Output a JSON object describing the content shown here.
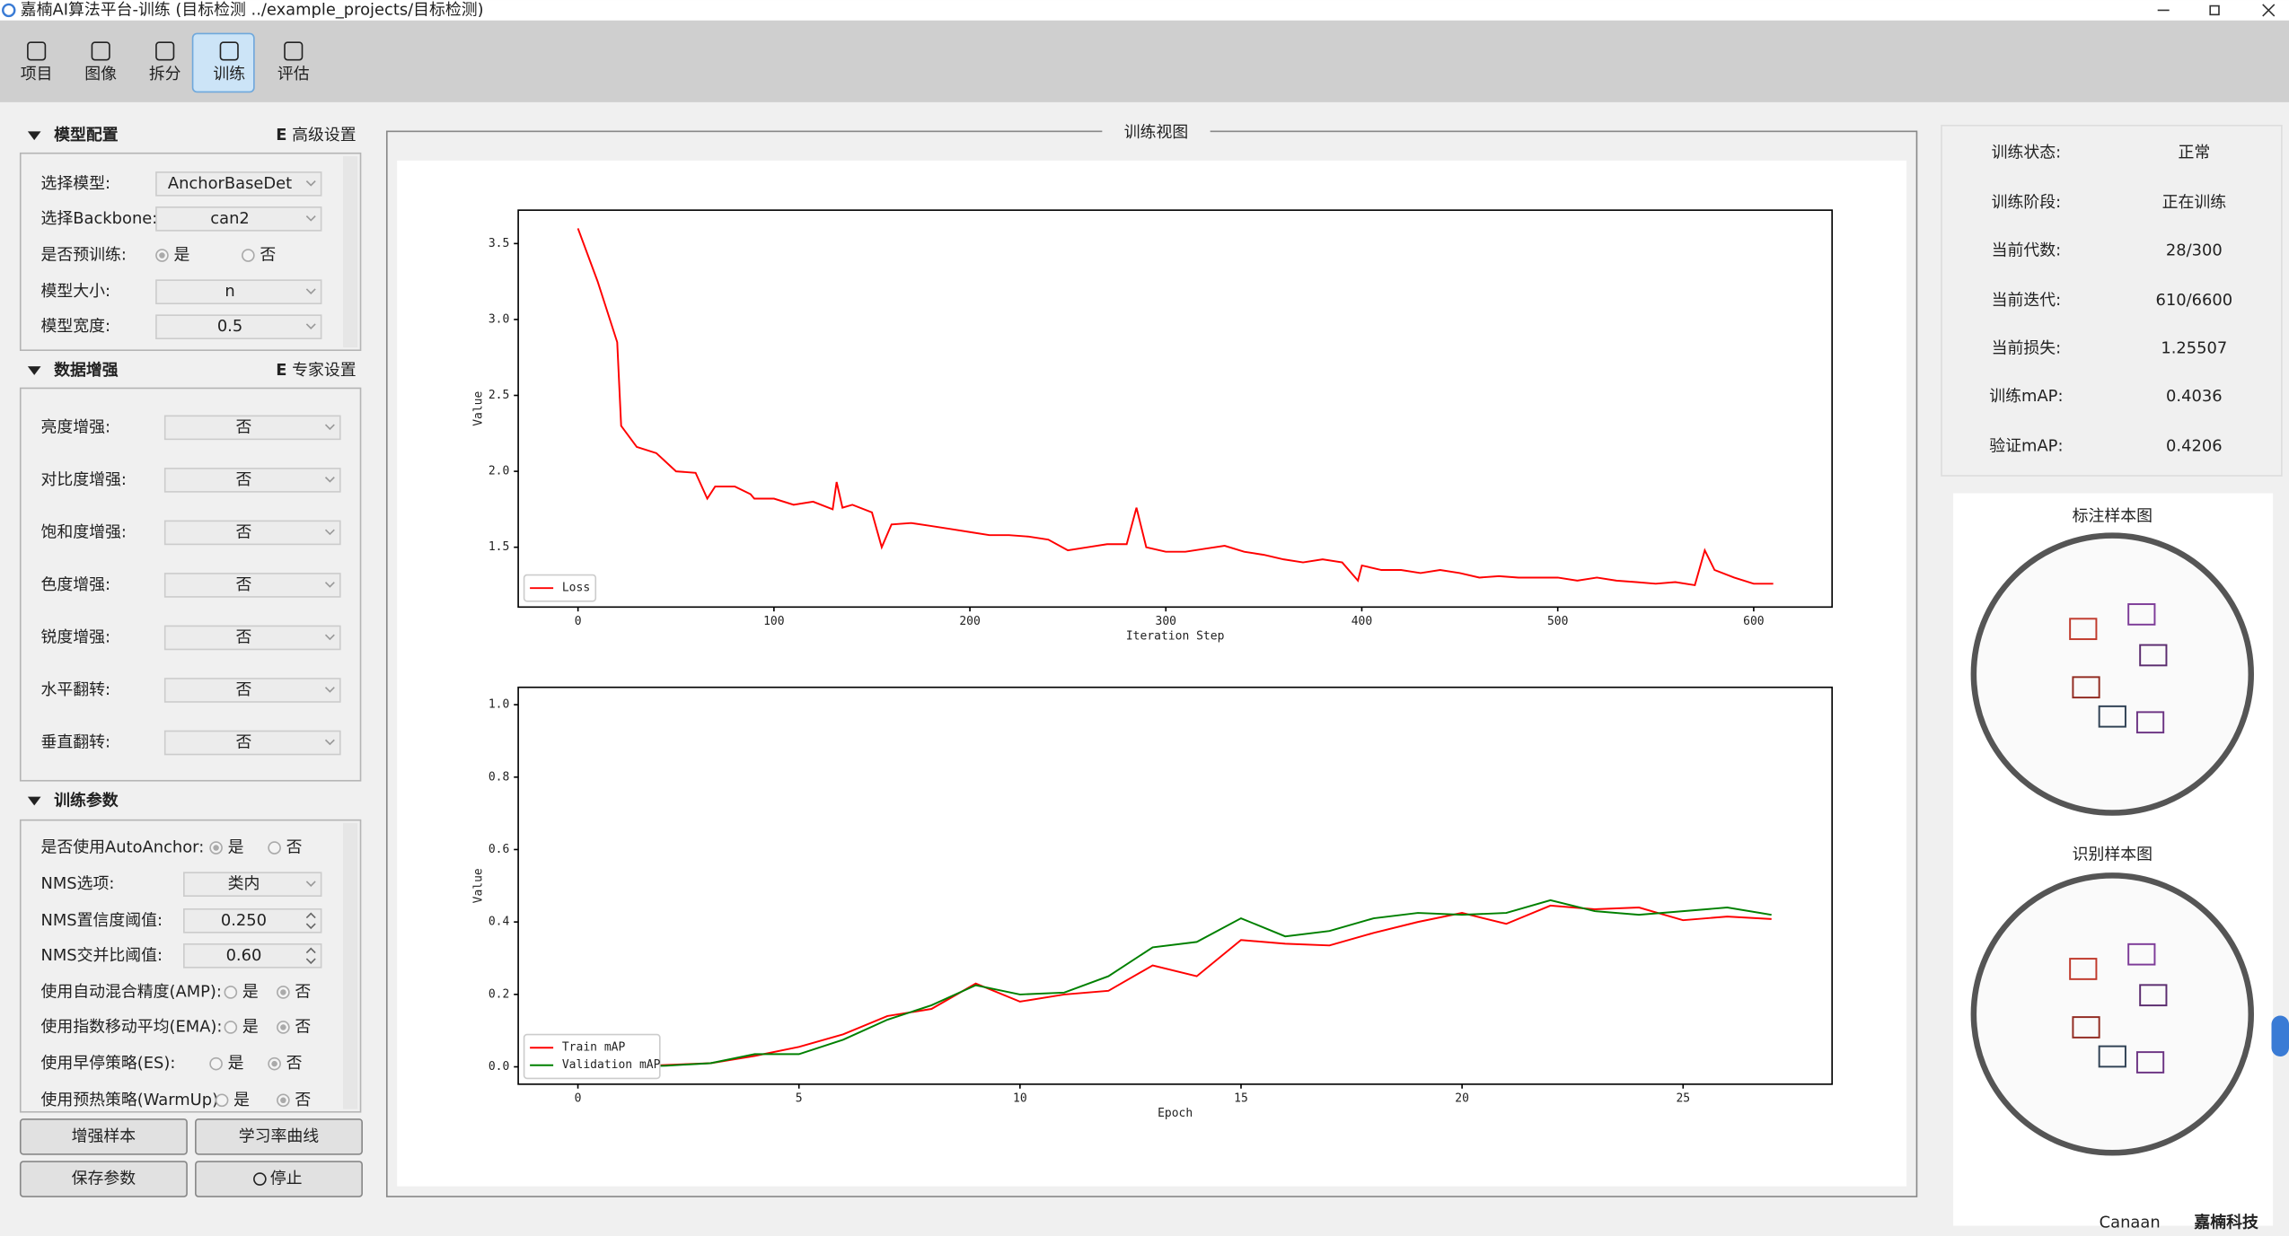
{
  "window_title": "嘉楠AI算法平台-训练 (目标检测 ../example_projects/目标检测)",
  "toolbar": [
    "项目",
    "图像",
    "拆分",
    "训练",
    "评估"
  ],
  "active_tab": 3,
  "panels": [
    {
      "title": "模型配置",
      "link": "高级设置",
      "rows": [
        {
          "label": "选择模型:",
          "value": "AnchorBaseDet"
        },
        {
          "label": "选择Backbone:",
          "value": "can2"
        },
        {
          "label": "是否预训练:",
          "options": [
            "是",
            "否"
          ],
          "checked": 0
        },
        {
          "label": "模型大小:",
          "value": "n"
        },
        {
          "label": "模型宽度:",
          "value": "0.5"
        }
      ]
    },
    {
      "title": "数据增强",
      "link": "专家设置",
      "rows": [
        {
          "label": "亮度增强:",
          "value": "否"
        },
        {
          "label": "对比度增强:",
          "value": "否"
        },
        {
          "label": "饱和度增强:",
          "value": "否"
        },
        {
          "label": "色度增强:",
          "value": "否"
        },
        {
          "label": "锐度增强:",
          "value": "否"
        },
        {
          "label": "水平翻转:",
          "value": "否"
        },
        {
          "label": "垂直翻转:",
          "value": "否"
        }
      ]
    },
    {
      "title": "训练参数",
      "rows": [
        {
          "label": "是否使用AutoAnchor:",
          "options": [
            "是",
            "否"
          ],
          "checked": 0
        },
        {
          "label": "NMS选项:",
          "value": "类内"
        },
        {
          "label": "NMS置信度阈值:",
          "value": "0.250",
          "spin": true
        },
        {
          "label": "NMS交并比阈值:",
          "value": "0.60",
          "spin": true
        },
        {
          "label": "使用自动混合精度(AMP):",
          "options": [
            "是",
            "否"
          ],
          "checked": 1
        },
        {
          "label": "使用指数移动平均(EMA):",
          "options": [
            "是",
            "否"
          ],
          "checked": 1
        },
        {
          "label": "使用早停策略(ES):",
          "options": [
            "是",
            "否"
          ],
          "checked": 1
        },
        {
          "label": "使用预热策略(WarmUp):",
          "options": [
            "是",
            "否"
          ],
          "checked": 1
        }
      ]
    }
  ],
  "buttons": [
    "增强样本",
    "学习率曲线",
    "保存参数",
    "停止"
  ],
  "view_title": "训练视图",
  "status": [
    {
      "label": "训练状态:",
      "value": "正常",
      "color": "#2e9a2e"
    },
    {
      "label": "训练阶段:",
      "value": "正在训练"
    },
    {
      "label": "当前代数:",
      "value": "28/300"
    },
    {
      "label": "当前迭代:",
      "value": "610/6600"
    },
    {
      "label": "当前损失:",
      "value": "1.25507"
    },
    {
      "label": "训练mAP:",
      "value": "0.4036"
    },
    {
      "label": "验证mAP:",
      "value": "0.4206"
    }
  ],
  "images": [
    "标注样本图",
    "识别样本图"
  ],
  "logo": {
    "brand": "Canaan",
    "name": "嘉楠科技"
  },
  "chart_data": [
    {
      "type": "line",
      "xlabel": "Iteration Step",
      "ylabel": "Value",
      "legend": "lower left",
      "x": [
        0,
        10,
        20,
        22,
        30,
        40,
        50,
        60,
        66,
        70,
        80,
        88,
        90,
        100,
        110,
        120,
        130,
        132,
        135,
        140,
        150,
        155,
        160,
        170,
        180,
        190,
        200,
        210,
        220,
        230,
        240,
        250,
        260,
        270,
        280,
        285,
        290,
        300,
        310,
        320,
        330,
        340,
        350,
        360,
        370,
        380,
        390,
        398,
        400,
        410,
        420,
        430,
        440,
        450,
        460,
        470,
        480,
        490,
        500,
        510,
        520,
        530,
        540,
        550,
        560,
        570,
        575,
        580,
        590,
        600,
        610
      ],
      "series": [
        {
          "name": "Loss",
          "color": "#ff0000",
          "values": [
            3.6,
            3.25,
            2.85,
            2.3,
            2.16,
            2.12,
            2.0,
            1.99,
            1.82,
            1.9,
            1.9,
            1.85,
            1.82,
            1.82,
            1.78,
            1.8,
            1.75,
            1.93,
            1.76,
            1.78,
            1.73,
            1.5,
            1.65,
            1.66,
            1.64,
            1.62,
            1.6,
            1.58,
            1.58,
            1.57,
            1.55,
            1.48,
            1.5,
            1.52,
            1.52,
            1.76,
            1.5,
            1.47,
            1.47,
            1.49,
            1.51,
            1.47,
            1.45,
            1.42,
            1.4,
            1.42,
            1.4,
            1.28,
            1.38,
            1.35,
            1.35,
            1.33,
            1.35,
            1.33,
            1.3,
            1.31,
            1.3,
            1.3,
            1.3,
            1.28,
            1.3,
            1.28,
            1.27,
            1.26,
            1.27,
            1.25,
            1.48,
            1.35,
            1.3,
            1.26,
            1.26
          ]
        }
      ],
      "xlim": [
        -30.5,
        640
      ],
      "xticks": [
        0,
        100,
        200,
        300,
        400,
        500,
        600
      ],
      "ylim": [
        1.106,
        3.72
      ],
      "yticks": [
        1.5,
        {
          "value": 2,
          "label": "2.0"
        },
        2.5,
        {
          "value": 3,
          "label": "3.0"
        },
        3.5
      ]
    },
    {
      "type": "line",
      "xlabel": "Epoch",
      "ylabel": "Value",
      "legend": "lower left",
      "x": [
        0,
        1,
        2,
        3,
        4,
        5,
        6,
        7,
        8,
        9,
        10,
        11,
        12,
        13,
        14,
        15,
        16,
        17,
        18,
        19,
        20,
        21,
        22,
        23,
        24,
        25,
        26,
        27
      ],
      "series": [
        {
          "name": "Train mAP",
          "color": "#ff0000",
          "values": [
            0,
            0,
            0.005,
            0.01,
            0.03,
            0.055,
            0.09,
            0.14,
            0.16,
            0.23,
            0.18,
            0.2,
            0.21,
            0.28,
            0.25,
            0.35,
            0.34,
            0.335,
            0.37,
            0.4,
            0.425,
            0.395,
            0.445,
            0.435,
            0.44,
            0.405,
            0.415,
            0.408
          ]
        },
        {
          "name": "Validation mAP",
          "color": "#008000",
          "values": [
            0,
            0,
            0.003,
            0.01,
            0.035,
            0.035,
            0.075,
            0.13,
            0.17,
            0.225,
            0.2,
            0.205,
            0.25,
            0.33,
            0.345,
            0.41,
            0.36,
            0.375,
            0.41,
            0.425,
            0.42,
            0.425,
            0.46,
            0.43,
            0.42,
            0.43,
            0.44,
            0.42
          ]
        }
      ],
      "xlim": [
        -1.35,
        28.37
      ],
      "xticks": [
        0,
        5,
        10,
        15,
        20,
        25
      ],
      "ylim": [
        -0.048,
        1.048
      ],
      "yticks": [
        {
          "value": 0,
          "label": "0.0"
        },
        0.2,
        0.4,
        0.6,
        0.8,
        {
          "value": 1,
          "label": "1.0"
        }
      ]
    }
  ]
}
